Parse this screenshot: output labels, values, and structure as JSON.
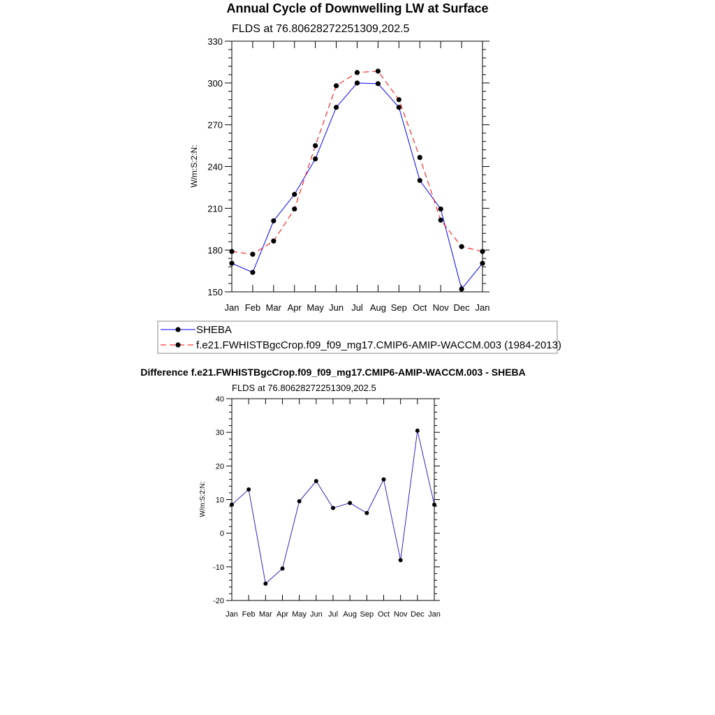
{
  "chart_data": [
    {
      "type": "line",
      "title": "Annual Cycle of Downwelling LW at Surface",
      "subtitle": "FLDS at 76.80628272251309,202.5",
      "ylabel": "W/m:S:2:N:",
      "xlabel": "",
      "categories": [
        "Jan",
        "Feb",
        "Mar",
        "Apr",
        "May",
        "Jun",
        "Jul",
        "Aug",
        "Sep",
        "Oct",
        "Nov",
        "Dec",
        "Jan"
      ],
      "ylim": [
        150,
        330
      ],
      "yticks": [
        "150",
        "180",
        "210",
        "240",
        "270",
        "300",
        "330"
      ],
      "series": [
        {
          "name": "SHEBA",
          "color": "#0000ff",
          "dash": "solid",
          "values": [
            170.5,
            164,
            201,
            220,
            245.5,
            282.5,
            300,
            299.5,
            282.5,
            230,
            209.5,
            152,
            170.5
          ]
        },
        {
          "name": "f.e21.FWHISTBgcCrop.f09_f09_mg17.CMIP6-AMIP-WACCM.003 (1984-2013)",
          "color": "#ff0000",
          "dash": "dashed",
          "values": [
            179,
            177,
            186.5,
            209.5,
            255,
            298,
            307.5,
            308.5,
            288,
            246.5,
            201.5,
            182.5,
            179
          ]
        }
      ],
      "legend": "below"
    },
    {
      "type": "line",
      "title": "Difference f.e21.FWHISTBgcCrop.f09_f09_mg17.CMIP6-AMIP-WACCM.003 - SHEBA",
      "subtitle": "FLDS at 76.80628272251309,202.5",
      "ylabel": "W/m:S:2:N:",
      "xlabel": "",
      "categories": [
        "Jan",
        "Feb",
        "Mar",
        "Apr",
        "May",
        "Jun",
        "Jul",
        "Aug",
        "Sep",
        "Oct",
        "Nov",
        "Dec",
        "Jan"
      ],
      "ylim": [
        -20,
        40
      ],
      "yticks": [
        "-20",
        "-10",
        "0",
        "10",
        "20",
        "30",
        "40"
      ],
      "series": [
        {
          "color": "#3c20c0",
          "values": [
            8.5,
            13,
            -15,
            -10.5,
            9.5,
            15.5,
            7.5,
            9,
            6,
            16,
            -8,
            30.5,
            8.5
          ]
        }
      ]
    }
  ]
}
